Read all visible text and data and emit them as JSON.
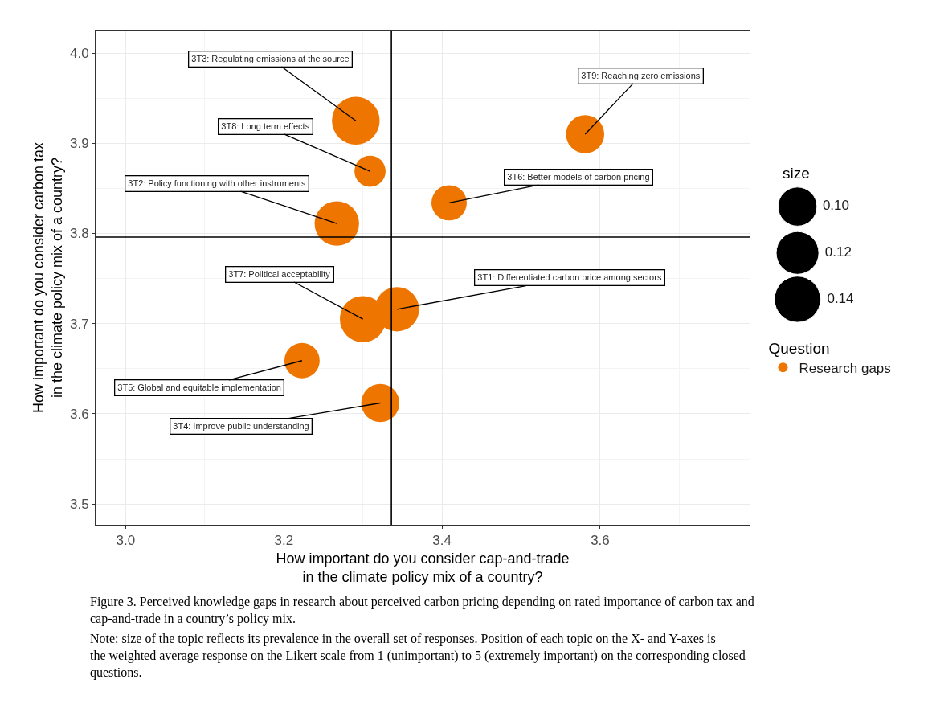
{
  "chart_data": {
    "type": "bubble",
    "xlabel": "How important do you consider cap-and-trade\nin the climate policy mix of a country?",
    "ylabel": "How important do you consider carbon tax\nin the climate policy mix of a country?",
    "legend_title": "Question",
    "series": [
      {
        "name": "Research gaps",
        "color": "#ee7600",
        "x": [
          3.291,
          3.309,
          3.267,
          3.581,
          3.409,
          3.3,
          3.343,
          3.223,
          3.322
        ],
        "values": [
          3.925,
          3.869,
          3.811,
          3.91,
          3.834,
          3.705,
          3.716,
          3.659,
          3.612
        ],
        "sizes": [
          0.15,
          0.064,
          0.13,
          0.096,
          0.082,
          0.14,
          0.13,
          0.082,
          0.096
        ]
      }
    ],
    "size_legend": [
      {
        "value": 0.1,
        "label": "0.10"
      },
      {
        "value": 0.12,
        "label": "0.12"
      },
      {
        "value": 0.14,
        "label": "0.14"
      }
    ],
    "xlim": [
      2.962,
      3.789
    ],
    "ylim": [
      3.477,
      4.025
    ],
    "xticks": [
      {
        "value": 3.0,
        "label": "3.0"
      },
      {
        "value": 3.2,
        "label": "3.2"
      },
      {
        "value": 3.4,
        "label": "3.4"
      },
      {
        "value": 3.6,
        "label": "3.6"
      }
    ],
    "yticks": [
      {
        "value": 3.5,
        "label": "3.5"
      },
      {
        "value": 3.6,
        "label": "3.6"
      },
      {
        "value": 3.7,
        "label": "3.7"
      },
      {
        "value": 3.8,
        "label": "3.8"
      },
      {
        "value": 3.9,
        "label": "3.9"
      },
      {
        "value": 4.0,
        "label": "4.0"
      }
    ],
    "grid": true,
    "legend": "right",
    "marker": "circle",
    "ref_lines": [
      {
        "axis": "x",
        "value": 3.336,
        "color": "#000000"
      },
      {
        "axis": "y",
        "value": 3.796,
        "color": "#000000"
      }
    ],
    "annotations": [
      {
        "text": "3T3: Regulating emissions at the source",
        "x": 3.291,
        "y": 3.925
      },
      {
        "text": "3T8: Long term effects",
        "x": 3.309,
        "y": 3.869
      },
      {
        "text": "3T2: Policy functioning with other instruments",
        "x": 3.267,
        "y": 3.811
      },
      {
        "text": "3T9: Reaching zero emissions",
        "x": 3.581,
        "y": 3.91
      },
      {
        "text": "3T6: Better models of carbon pricing",
        "x": 3.409,
        "y": 3.834
      },
      {
        "text": "3T7: Political acceptability",
        "x": 3.3,
        "y": 3.705
      },
      {
        "text": "3T1: Differentiated carbon price among sectors",
        "x": 3.343,
        "y": 3.716
      },
      {
        "text": "3T5: Global and equitable implementation",
        "x": 3.223,
        "y": 3.659
      },
      {
        "text": "3T4: Improve public understanding",
        "x": 3.322,
        "y": 3.612
      },
      "size",
      "Figure 3. Perceived knowledge gaps in research about perceived carbon pricing depending on rated importance of carbon tax and cap-and-trade in a country’s policy mix.",
      "Note: size of the topic reflects its prevalence in the overall set of responses. Position of each topic on the X- and Y-axes is the weighted average response on the Likert scale from 1 (unimportant) to 5 (extremely important) on the corresponding closed questions."
    ]
  }
}
